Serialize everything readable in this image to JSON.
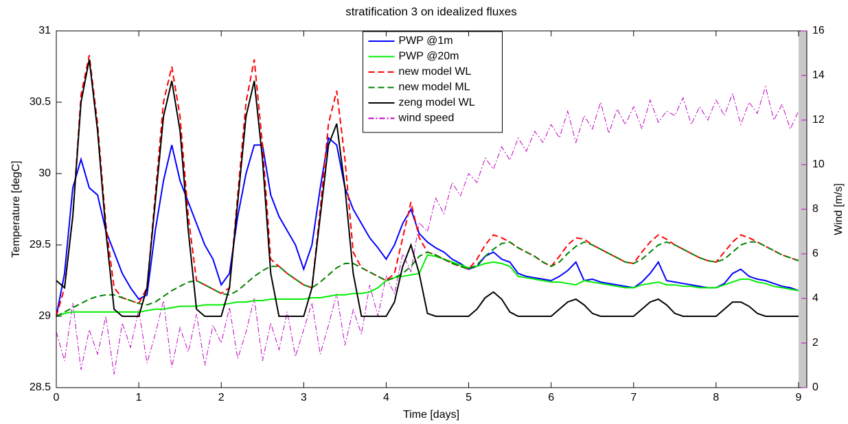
{
  "chart_data": {
    "type": "line",
    "title": "stratification 3 on idealized fluxes",
    "x_label": "Time [days]",
    "y_label": "Temperature [degC]",
    "y2_label": "Wind [m/s]",
    "xlim": [
      0,
      9.1
    ],
    "ylim": [
      28.5,
      31
    ],
    "y2lim": [
      0,
      16
    ],
    "xticks": [
      0,
      1,
      2,
      3,
      4,
      5,
      6,
      7,
      8,
      9
    ],
    "yticks": [
      28.5,
      29,
      29.5,
      30,
      30.5,
      31
    ],
    "y2ticks": [
      0,
      2,
      4,
      6,
      8,
      10,
      12,
      14,
      16
    ],
    "y2_color": "#c000c0",
    "legend": "top-center",
    "grid": false,
    "x": [
      0,
      0.1,
      0.2,
      0.3,
      0.4,
      0.5,
      0.6,
      0.7,
      0.8,
      0.9,
      1,
      1.1,
      1.2,
      1.3,
      1.4,
      1.5,
      1.6,
      1.7,
      1.8,
      1.9,
      2,
      2.1,
      2.2,
      2.3,
      2.4,
      2.5,
      2.6,
      2.7,
      2.8,
      2.9,
      3,
      3.1,
      3.2,
      3.3,
      3.4,
      3.5,
      3.6,
      3.7,
      3.8,
      3.9,
      4,
      4.1,
      4.2,
      4.3,
      4.4,
      4.5,
      4.6,
      4.7,
      4.8,
      4.9,
      5,
      5.1,
      5.2,
      5.3,
      5.4,
      5.5,
      5.6,
      5.7,
      5.8,
      5.9,
      6,
      6.1,
      6.2,
      6.3,
      6.4,
      6.5,
      6.6,
      6.7,
      6.8,
      6.9,
      7,
      7.1,
      7.2,
      7.3,
      7.4,
      7.5,
      7.6,
      7.7,
      7.8,
      7.9,
      8,
      8.1,
      8.2,
      8.3,
      8.4,
      8.5,
      8.6,
      8.7,
      8.8,
      8.9,
      9
    ],
    "series": [
      {
        "name": "PWP @1m",
        "color": "#0000ff",
        "dash": "",
        "values": [
          29,
          29.3,
          29.9,
          30.1,
          29.9,
          29.85,
          29.6,
          29.45,
          29.3,
          29.2,
          29.12,
          29.15,
          29.6,
          29.95,
          30.2,
          29.95,
          29.8,
          29.65,
          29.5,
          29.4,
          29.22,
          29.3,
          29.7,
          30.0,
          30.2,
          30.2,
          29.85,
          29.7,
          29.6,
          29.5,
          29.33,
          29.5,
          29.9,
          30.25,
          30.2,
          29.9,
          29.75,
          29.65,
          29.55,
          29.48,
          29.4,
          29.5,
          29.65,
          29.75,
          29.58,
          29.52,
          29.48,
          29.45,
          29.4,
          29.37,
          29.33,
          29.35,
          29.42,
          29.45,
          29.4,
          29.38,
          29.3,
          29.28,
          29.27,
          29.26,
          29.25,
          29.28,
          29.32,
          29.38,
          29.25,
          29.26,
          29.24,
          29.23,
          29.22,
          29.21,
          29.2,
          29.24,
          29.3,
          29.38,
          29.25,
          29.24,
          29.23,
          29.22,
          29.21,
          29.2,
          29.2,
          29.23,
          29.3,
          29.33,
          29.28,
          29.26,
          29.25,
          29.23,
          29.21,
          29.2,
          29.18
        ]
      },
      {
        "name": "PWP @20m",
        "color": "#00ee00",
        "dash": "",
        "values": [
          29,
          29.02,
          29.03,
          29.03,
          29.03,
          29.03,
          29.03,
          29.03,
          29.03,
          29.03,
          29.03,
          29.04,
          29.05,
          29.05,
          29.06,
          29.07,
          29.07,
          29.07,
          29.08,
          29.08,
          29.08,
          29.09,
          29.1,
          29.1,
          29.11,
          29.11,
          29.12,
          29.12,
          29.12,
          29.12,
          29.12,
          29.13,
          29.13,
          29.14,
          29.15,
          29.15,
          29.16,
          29.16,
          29.17,
          29.2,
          29.25,
          29.27,
          29.28,
          29.29,
          29.3,
          29.43,
          29.42,
          29.4,
          29.38,
          29.36,
          29.34,
          29.35,
          29.37,
          29.38,
          29.37,
          29.35,
          29.28,
          29.27,
          29.26,
          29.25,
          29.24,
          29.24,
          29.23,
          29.22,
          29.25,
          29.24,
          29.23,
          29.22,
          29.21,
          29.2,
          29.2,
          29.22,
          29.23,
          29.24,
          29.22,
          29.22,
          29.21,
          29.21,
          29.2,
          29.2,
          29.2,
          29.22,
          29.24,
          29.26,
          29.26,
          29.24,
          29.23,
          29.21,
          29.2,
          29.19,
          29.18
        ]
      },
      {
        "name": "new model WL",
        "color": "#ff0000",
        "dash": "9 5",
        "values": [
          29,
          29.2,
          29.7,
          30.55,
          30.83,
          30.35,
          29.65,
          29.2,
          29.13,
          29.11,
          29.09,
          29.2,
          29.85,
          30.5,
          30.75,
          30.4,
          29.7,
          29.25,
          29.22,
          29.19,
          29.16,
          29.2,
          29.85,
          30.5,
          30.8,
          30.2,
          29.4,
          29.35,
          29.3,
          29.26,
          29.22,
          29.2,
          29.75,
          30.35,
          30.58,
          30.1,
          29.45,
          29.34,
          29.31,
          29.28,
          29.25,
          29.3,
          29.55,
          29.8,
          29.55,
          29.45,
          29.43,
          29.4,
          29.37,
          29.35,
          29.33,
          29.4,
          29.5,
          29.57,
          29.55,
          29.52,
          29.48,
          29.45,
          29.42,
          29.38,
          29.35,
          29.42,
          29.5,
          29.55,
          29.54,
          29.5,
          29.47,
          29.44,
          29.41,
          29.38,
          29.37,
          29.45,
          29.52,
          29.57,
          29.54,
          29.5,
          29.47,
          29.44,
          29.41,
          29.39,
          29.38,
          29.45,
          29.52,
          29.57,
          29.55,
          29.52,
          29.49,
          29.46,
          29.43,
          29.41,
          29.39
        ]
      },
      {
        "name": "new model ML",
        "color": "#008000",
        "dash": "9 5",
        "values": [
          29,
          29.03,
          29.06,
          29.09,
          29.12,
          29.14,
          29.15,
          29.15,
          29.13,
          29.11,
          29.09,
          29.08,
          29.1,
          29.14,
          29.18,
          29.21,
          29.24,
          29.25,
          29.22,
          29.19,
          29.16,
          29.15,
          29.18,
          29.23,
          29.28,
          29.32,
          29.35,
          29.35,
          29.3,
          29.26,
          29.22,
          29.2,
          29.24,
          29.29,
          29.34,
          29.37,
          29.37,
          29.34,
          29.31,
          29.28,
          29.25,
          29.27,
          29.3,
          29.35,
          29.42,
          29.45,
          29.43,
          29.4,
          29.37,
          29.35,
          29.33,
          29.36,
          29.42,
          29.47,
          29.51,
          29.52,
          29.48,
          29.45,
          29.42,
          29.38,
          29.35,
          29.38,
          29.44,
          29.49,
          29.52,
          29.5,
          29.47,
          29.44,
          29.41,
          29.38,
          29.37,
          29.4,
          29.45,
          29.5,
          29.52,
          29.5,
          29.47,
          29.44,
          29.41,
          29.39,
          29.38,
          29.4,
          29.45,
          29.5,
          29.52,
          29.52,
          29.49,
          29.46,
          29.43,
          29.41,
          29.39
        ]
      },
      {
        "name": "zeng model WL",
        "color": "#000000",
        "dash": "",
        "values": [
          29.25,
          29.2,
          29.7,
          30.5,
          30.8,
          30.3,
          29.6,
          29.05,
          29,
          29,
          29,
          29.2,
          29.8,
          30.4,
          30.65,
          30.3,
          29.6,
          29.05,
          29,
          29,
          29,
          29.2,
          29.8,
          30.4,
          30.65,
          30.1,
          29.3,
          29,
          29,
          29,
          29,
          29.2,
          29.7,
          30.2,
          30.35,
          29.9,
          29.3,
          29,
          29,
          29,
          29,
          29.1,
          29.35,
          29.5,
          29.3,
          29.02,
          29,
          29,
          29,
          29,
          29,
          29.05,
          29.13,
          29.17,
          29.12,
          29.03,
          29,
          29,
          29,
          29,
          29,
          29.05,
          29.1,
          29.12,
          29.08,
          29.02,
          29,
          29,
          29,
          29,
          29,
          29.05,
          29.1,
          29.12,
          29.08,
          29.02,
          29,
          29,
          29,
          29,
          29,
          29.05,
          29.1,
          29.1,
          29.07,
          29.02,
          29,
          29,
          29,
          29,
          29
        ]
      },
      {
        "name": "wind speed",
        "color": "#c000c0",
        "dash": "8 3 2 3",
        "axis": "y2",
        "values": [
          2.5,
          1.2,
          3.8,
          0.8,
          2.6,
          1.5,
          3.2,
          0.6,
          2.9,
          1.8,
          3.5,
          1.1,
          2.4,
          3.9,
          0.9,
          2.7,
          1.6,
          3.3,
          1.0,
          2.8,
          2.0,
          3.6,
          1.3,
          2.5,
          4.0,
          1.2,
          2.9,
          1.7,
          3.4,
          1.4,
          2.6,
          3.8,
          1.5,
          2.8,
          4.2,
          1.9,
          3.5,
          2.4,
          4.6,
          3.2,
          5.0,
          4.2,
          6.0,
          5.2,
          7.4,
          7.0,
          8.5,
          7.8,
          9.2,
          8.6,
          9.6,
          9.2,
          10.3,
          9.8,
          10.8,
          10.2,
          11.2,
          10.6,
          11.5,
          11.0,
          11.8,
          11.2,
          12.4,
          11.0,
          12.2,
          11.6,
          12.8,
          11.4,
          12.5,
          11.8,
          12.6,
          11.6,
          12.9,
          11.9,
          12.4,
          12.2,
          13.0,
          11.8,
          12.6,
          12.0,
          12.9,
          12.2,
          13.2,
          11.8,
          12.8,
          12.3,
          13.5,
          12.0,
          12.7,
          11.6,
          12.4
        ]
      }
    ]
  }
}
